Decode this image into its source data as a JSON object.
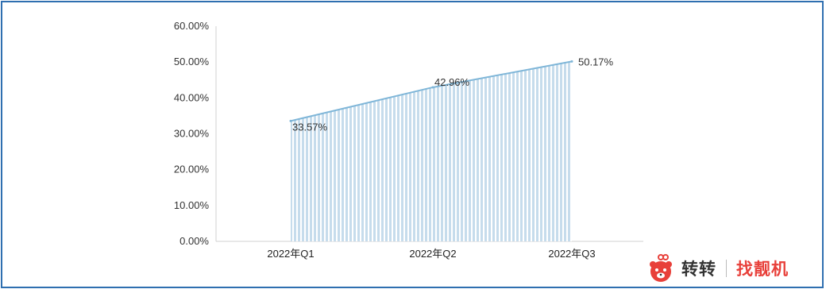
{
  "chart_data": {
    "type": "area",
    "categories": [
      "2022年Q1",
      "2022年Q2",
      "2022年Q3"
    ],
    "values": [
      33.57,
      42.96,
      50.17
    ],
    "data_labels": [
      "33.57%",
      "42.96%",
      "50.17%"
    ],
    "y_ticks": [
      "0.00%",
      "10.00%",
      "20.00%",
      "30.00%",
      "40.00%",
      "50.00%",
      "60.00%"
    ],
    "ylim": [
      0,
      60
    ],
    "grid": false,
    "title": "",
    "xlabel": "",
    "ylabel": "",
    "colors": {
      "line": "#7fb6d8",
      "fill": "#c6dcec",
      "stripe": "#ffffff"
    }
  },
  "logo": {
    "name_primary": "转转",
    "name_secondary": "找靓机",
    "icon": "bear-mascot-icon",
    "colors": {
      "primary": "#333333",
      "secondary": "#e8403a",
      "mascot": "#e8403a"
    }
  }
}
